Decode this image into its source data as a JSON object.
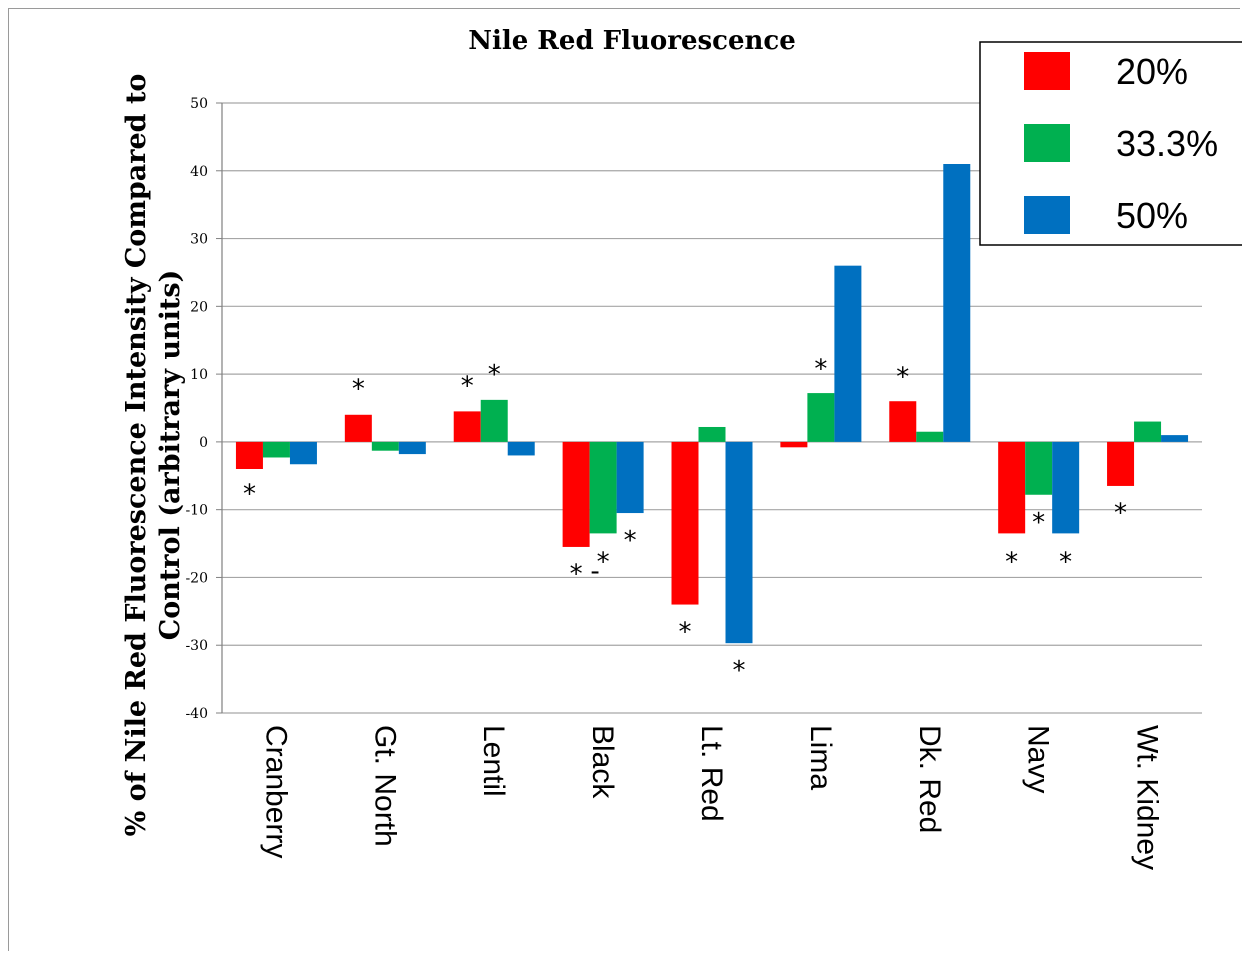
{
  "chart_data": {
    "type": "bar",
    "title": "Nile Red Fluorescence",
    "ylabel_line1": "% of Nile Red Fluorescence Intensity Compared to",
    "ylabel_line2": "Control (arbitrary units)",
    "xlabel": "",
    "ylim": [
      -40,
      50
    ],
    "yticks": [
      -40,
      -30,
      -20,
      -10,
      0,
      10,
      20,
      30,
      40,
      50
    ],
    "grid": true,
    "legend_position": "top-right",
    "categories": [
      "Cranberry",
      "Gt. North",
      "Lentil",
      "Black",
      "Lt. Red",
      "Lima",
      "Dk. Red",
      "Navy",
      "Wt. Kidney"
    ],
    "series": [
      {
        "name": "20%",
        "color": "#ff0000",
        "values": [
          -4,
          4,
          4.5,
          -15.5,
          -24,
          -0.8,
          6,
          -13.5,
          -6.5
        ]
      },
      {
        "name": "33.3%",
        "color": "#00b050",
        "values": [
          -2.3,
          -1.3,
          6.2,
          -13.5,
          2.2,
          7.2,
          1.5,
          -7.8,
          3
        ]
      },
      {
        "name": "50%",
        "color": "#0070c0",
        "values": [
          -3.3,
          -1.8,
          -2,
          -10.5,
          -29.7,
          26,
          41,
          -13.5,
          1
        ]
      }
    ],
    "annotations": [
      {
        "text": "*",
        "category": 0,
        "series": 0,
        "y": -7.5
      },
      {
        "text": "*",
        "category": 1,
        "series": 0,
        "y": 8
      },
      {
        "text": "*",
        "category": 2,
        "series": 0,
        "y": 8.5
      },
      {
        "text": "*",
        "category": 2,
        "series": 1,
        "y": 10.2
      },
      {
        "text": "*",
        "category": 3,
        "series": 0,
        "y": -19.3
      },
      {
        "text": "-",
        "category": 3,
        "series": 0.7,
        "y": -18.8
      },
      {
        "text": "*",
        "category": 3,
        "series": 1,
        "y": -17.5
      },
      {
        "text": "*",
        "category": 3,
        "series": 2,
        "y": -14.3
      },
      {
        "text": "*",
        "category": 4,
        "series": 0,
        "y": -27.8
      },
      {
        "text": "*",
        "category": 4,
        "series": 2,
        "y": -33.5
      },
      {
        "text": "*",
        "category": 5,
        "series": 1,
        "y": 11
      },
      {
        "text": "*",
        "category": 6,
        "series": 0,
        "y": 9.8
      },
      {
        "text": "*",
        "category": 7,
        "series": 0,
        "y": -17.5
      },
      {
        "text": "*",
        "category": 7,
        "series": 1,
        "y": -11.7
      },
      {
        "text": "*",
        "category": 7,
        "series": 2,
        "y": -17.5
      },
      {
        "text": "*",
        "category": 8,
        "series": 0,
        "y": -10.3
      }
    ]
  }
}
